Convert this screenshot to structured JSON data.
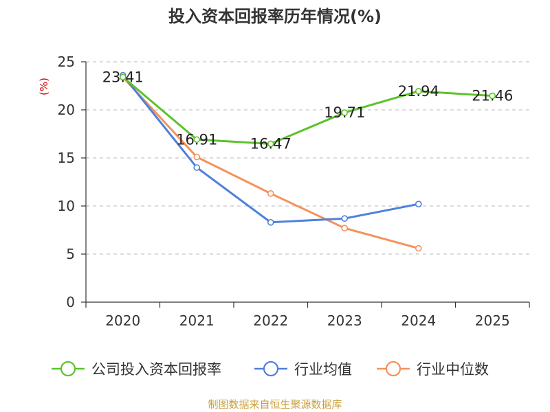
{
  "chart_data": {
    "type": "line",
    "title": "投入资本回报率历年情况(%)",
    "ylabel": "(%)",
    "xlabel": "",
    "categories": [
      "2020",
      "2021",
      "2022",
      "2023",
      "2024",
      "2025"
    ],
    "ylim": [
      0,
      25
    ],
    "yticks": [
      0,
      5,
      10,
      15,
      20,
      25
    ],
    "grid": "horizontal dashed",
    "series": [
      {
        "name": "公司投入资本回报率",
        "color": "#5cc22a",
        "values": [
          23.41,
          16.91,
          16.47,
          19.71,
          21.94,
          21.46
        ],
        "labels": [
          "23.41",
          "16.91",
          "16.47",
          "19.71",
          "21.94",
          "21.46"
        ]
      },
      {
        "name": "行业均值",
        "color": "#4f7fdc",
        "values": [
          23.6,
          14.0,
          8.3,
          8.7,
          10.2,
          null
        ]
      },
      {
        "name": "行业中位数",
        "color": "#f5915a",
        "values": [
          23.4,
          15.1,
          11.3,
          7.7,
          5.6,
          null
        ]
      }
    ],
    "legend_position": "bottom",
    "source": "制图数据来自恒生聚源数据库"
  }
}
